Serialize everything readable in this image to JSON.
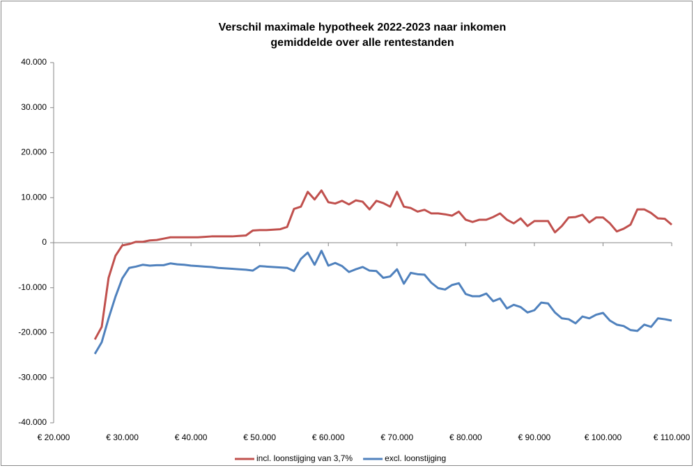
{
  "chart_data": {
    "type": "line",
    "title": "Verschil maximale hypotheek 2022-2023 naar inkomen",
    "subtitle": "gemiddelde over alle rentestanden",
    "x": [
      26000,
      27000,
      28000,
      29000,
      30000,
      31000,
      32000,
      33000,
      34000,
      35000,
      36000,
      37000,
      38000,
      39000,
      40000,
      41000,
      42000,
      43000,
      44000,
      45000,
      46000,
      47000,
      48000,
      49000,
      50000,
      51000,
      52000,
      53000,
      54000,
      55000,
      56000,
      57000,
      58000,
      59000,
      60000,
      61000,
      62000,
      63000,
      64000,
      65000,
      66000,
      67000,
      68000,
      69000,
      70000,
      71000,
      72000,
      73000,
      74000,
      75000,
      76000,
      77000,
      78000,
      79000,
      80000,
      81000,
      82000,
      83000,
      84000,
      85000,
      86000,
      87000,
      88000,
      89000,
      90000,
      91000,
      92000,
      93000,
      94000,
      95000,
      96000,
      97000,
      98000,
      99000,
      100000,
      101000,
      102000,
      103000,
      104000,
      105000,
      106000,
      107000,
      108000,
      109000,
      110000
    ],
    "series": [
      {
        "name": "incl. loonstijging van 3,7%",
        "color": "#c0504d",
        "values": [
          -21500,
          -18700,
          -7800,
          -2900,
          -600,
          -300,
          200,
          200,
          500,
          600,
          900,
          1200,
          1200,
          1200,
          1200,
          1200,
          1300,
          1400,
          1400,
          1400,
          1400,
          1500,
          1600,
          2700,
          2800,
          2800,
          2900,
          3000,
          3500,
          7500,
          8000,
          11300,
          9600,
          11600,
          9000,
          8700,
          9300,
          8500,
          9400,
          9100,
          7400,
          9300,
          8800,
          8000,
          11300,
          8000,
          7700,
          6900,
          7300,
          6500,
          6500,
          6300,
          6000,
          6900,
          5100,
          4600,
          5100,
          5100,
          5700,
          6500,
          5100,
          4300,
          5400,
          3700,
          4800,
          4800,
          4800,
          2300,
          3700,
          5600,
          5700,
          6200,
          4500,
          5600,
          5600,
          4300,
          2500,
          3100,
          4000,
          7400,
          7400,
          6600,
          5400,
          5300,
          4000
        ]
      },
      {
        "name": "excl. loonstijging",
        "color": "#4f81bd",
        "values": [
          -24700,
          -22100,
          -16800,
          -12000,
          -7900,
          -5600,
          -5300,
          -4900,
          -5100,
          -5000,
          -5000,
          -4600,
          -4800,
          -4900,
          -5100,
          -5200,
          -5300,
          -5400,
          -5600,
          -5700,
          -5800,
          -5900,
          -6000,
          -6200,
          -5200,
          -5300,
          -5400,
          -5500,
          -5600,
          -6300,
          -3600,
          -2200,
          -4900,
          -1800,
          -5100,
          -4500,
          -5200,
          -6500,
          -5900,
          -5400,
          -6200,
          -6300,
          -7800,
          -7500,
          -5900,
          -9100,
          -6700,
          -7000,
          -7100,
          -8900,
          -10100,
          -10400,
          -9400,
          -9000,
          -11400,
          -11900,
          -11900,
          -11300,
          -13000,
          -12400,
          -14600,
          -13800,
          -14300,
          -15500,
          -15000,
          -13300,
          -13500,
          -15500,
          -16800,
          -17000,
          -17900,
          -16400,
          -16800,
          -16000,
          -15600,
          -17300,
          -18200,
          -18500,
          -19400,
          -19600,
          -18200,
          -18700,
          -16800,
          -17000,
          -17300
        ]
      }
    ],
    "xlim": [
      20000,
      110000
    ],
    "xticks": [
      {
        "value": 20000,
        "label": "€ 20.000"
      },
      {
        "value": 30000,
        "label": "€ 30.000"
      },
      {
        "value": 40000,
        "label": "€ 40.000"
      },
      {
        "value": 50000,
        "label": "€ 50.000"
      },
      {
        "value": 60000,
        "label": "€ 60.000"
      },
      {
        "value": 70000,
        "label": "€ 70.000"
      },
      {
        "value": 80000,
        "label": "€ 80.000"
      },
      {
        "value": 90000,
        "label": "€ 90.000"
      },
      {
        "value": 100000,
        "label": "€ 100.000"
      },
      {
        "value": 110000,
        "label": "€ 110.000"
      }
    ],
    "ylim": [
      -40000,
      40000
    ],
    "yticks": [
      {
        "value": -40000,
        "label": "-40.000"
      },
      {
        "value": -30000,
        "label": "-30.000"
      },
      {
        "value": -20000,
        "label": "-20.000"
      },
      {
        "value": -10000,
        "label": "-10.000"
      },
      0,
      {
        "value": 10000,
        "label": "10.000"
      },
      {
        "value": 20000,
        "label": "20.000"
      },
      {
        "value": 30000,
        "label": "30.000"
      },
      {
        "value": 40000,
        "label": "40.000"
      }
    ],
    "legend": "bottom"
  }
}
